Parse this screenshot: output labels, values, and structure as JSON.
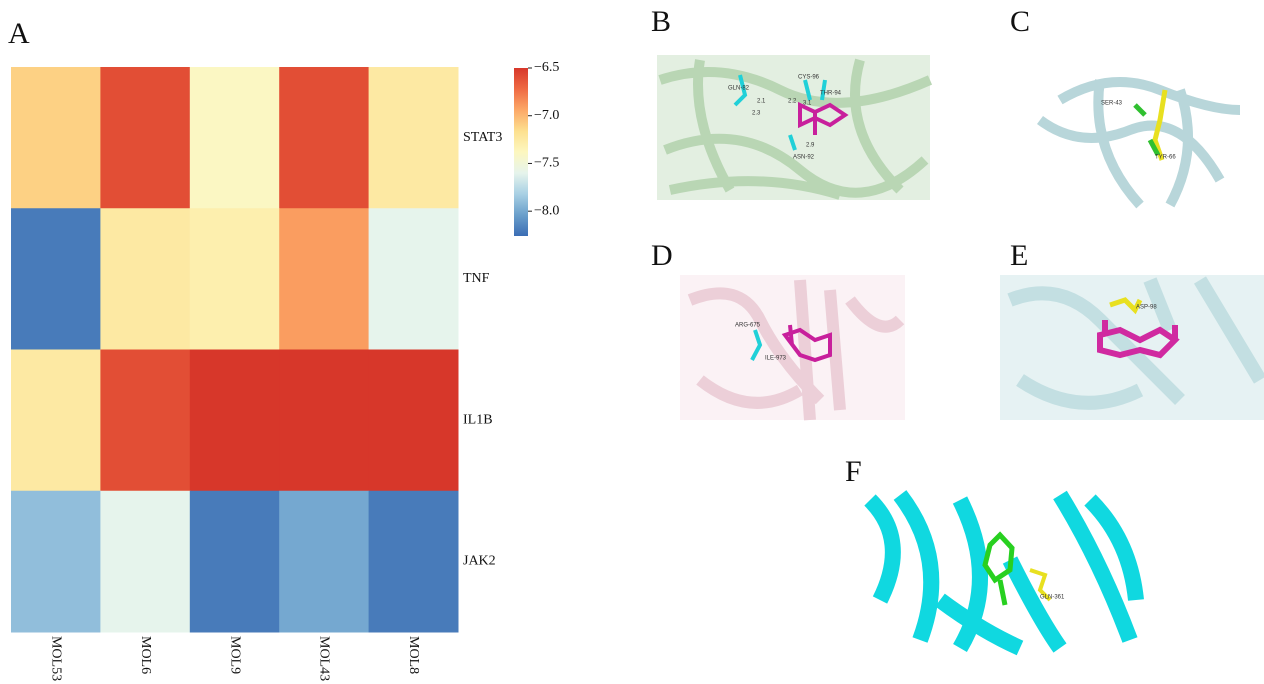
{
  "chart_data": {
    "type": "heatmap",
    "categories": [
      "MOL53",
      "MOL6",
      "MOL9",
      "MOL43",
      "MOL8"
    ],
    "y_categories": [
      "STAT3",
      "TNF",
      "IL1B",
      "JAK2"
    ],
    "values": [
      [
        -7.1,
        -6.6,
        -7.4,
        -6.6,
        -7.25
      ],
      [
        -8.2,
        -7.25,
        -7.3,
        -6.9,
        -7.6
      ],
      [
        -7.25,
        -6.6,
        -6.5,
        -6.5,
        -6.5
      ],
      [
        -7.9,
        -7.6,
        -8.2,
        -8.0,
        -8.2
      ]
    ],
    "vlim": [
      -8.26,
      -6.5
    ],
    "vticks": [
      {
        "value": -6.5,
        "label": "−6.5"
      },
      {
        "value": -7.0,
        "label": "−7.0"
      },
      {
        "value": -7.5,
        "label": "−7.5"
      },
      {
        "value": -8.0,
        "label": "−8.0"
      }
    ],
    "colormap": [
      "#3b6db4",
      "#6a9fcb",
      "#a8d0e4",
      "#e6f4ec",
      "#fdf7bf",
      "#fde08f",
      "#fca867",
      "#ef6a43",
      "#d7372a"
    ]
  },
  "panels": [
    {
      "label": "A"
    },
    {
      "label": "B",
      "notes": [
        "GLN-82",
        "CYS-96",
        "THR-94",
        "ASN-92",
        "2.1",
        "2.3",
        "2.2",
        "3.1",
        "2.9"
      ]
    },
    {
      "label": "C",
      "notes": [
        "SER-43",
        "TYR-66"
      ]
    },
    {
      "label": "D",
      "notes": [
        "ARG-675",
        "ILE-973"
      ]
    },
    {
      "label": "E",
      "notes": [
        "ASP-98"
      ]
    },
    {
      "label": "F",
      "notes": [
        "GLN-361"
      ]
    }
  ]
}
